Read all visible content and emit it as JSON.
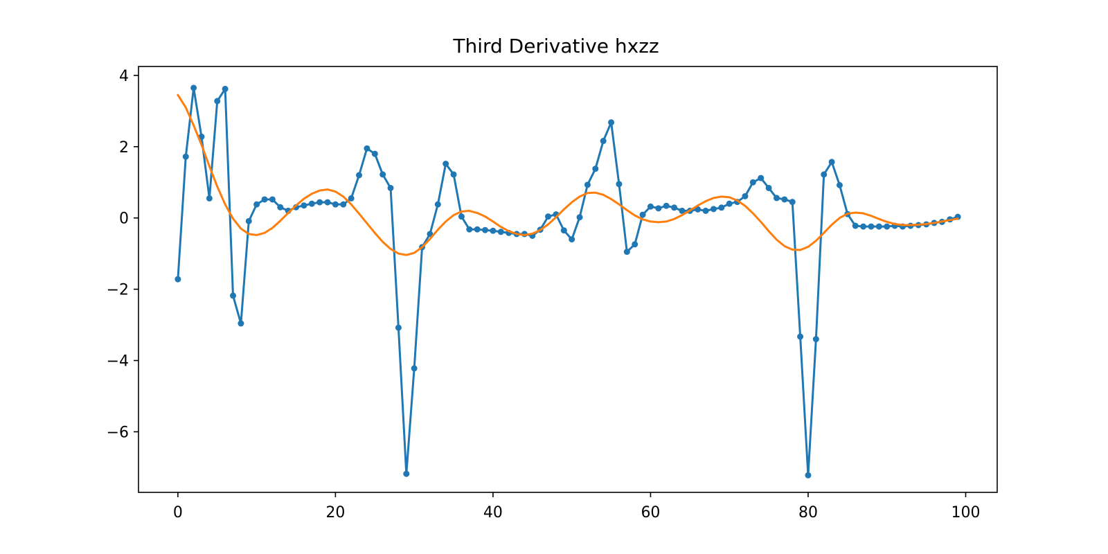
{
  "chart_data": {
    "type": "line",
    "title": "Third Derivative hxzz",
    "xlabel": "",
    "ylabel": "",
    "xlim": [
      -5,
      104
    ],
    "ylim": [
      -7.7,
      4.25
    ],
    "x_ticks": [
      0,
      20,
      40,
      60,
      80,
      100
    ],
    "x_tick_labels": [
      "0",
      "20",
      "40",
      "60",
      "80",
      "100"
    ],
    "y_ticks": [
      4,
      2,
      0,
      -2,
      -4,
      -6
    ],
    "y_tick_labels": [
      "4",
      "2",
      "0",
      "−2",
      "−4",
      "−6"
    ],
    "grid": false,
    "legend": "none",
    "series": [
      {
        "color": "#1f77b4",
        "style": "line-with-dot-markers",
        "x": [
          0,
          1,
          2,
          3,
          4,
          5,
          6,
          7,
          8,
          9,
          10,
          11,
          12,
          13,
          14,
          15,
          16,
          17,
          18,
          19,
          20,
          21,
          22,
          23,
          24,
          25,
          26,
          27,
          28,
          29,
          30,
          31,
          32,
          33,
          34,
          35,
          36,
          37,
          38,
          39,
          40,
          41,
          42,
          43,
          44,
          45,
          46,
          47,
          48,
          49,
          50,
          51,
          52,
          53,
          54,
          55,
          56,
          57,
          58,
          59,
          60,
          61,
          62,
          63,
          64,
          65,
          66,
          67,
          68,
          69,
          70,
          71,
          72,
          73,
          74,
          75,
          76,
          77,
          78,
          79,
          80,
          81,
          82,
          83,
          84,
          85,
          86,
          87,
          88,
          89,
          90,
          91,
          92,
          93,
          94,
          95,
          96,
          97,
          98,
          99
        ],
        "y": [
          -1.72,
          1.72,
          3.65,
          2.28,
          0.55,
          3.28,
          3.62,
          -2.18,
          -2.96,
          -0.09,
          0.38,
          0.52,
          0.52,
          0.3,
          0.2,
          0.3,
          0.35,
          0.4,
          0.44,
          0.44,
          0.38,
          0.38,
          0.55,
          1.2,
          1.95,
          1.8,
          1.22,
          0.84,
          -3.08,
          -7.18,
          -4.22,
          -0.82,
          -0.45,
          0.38,
          1.52,
          1.22,
          0.04,
          -0.32,
          -0.32,
          -0.34,
          -0.36,
          -0.39,
          -0.42,
          -0.45,
          -0.45,
          -0.5,
          -0.33,
          0.04,
          0.1,
          -0.35,
          -0.6,
          0.02,
          0.93,
          1.38,
          2.16,
          2.68,
          0.95,
          -0.95,
          -0.74,
          0.09,
          0.32,
          0.27,
          0.34,
          0.29,
          0.2,
          0.2,
          0.24,
          0.2,
          0.25,
          0.29,
          0.4,
          0.45,
          0.61,
          1.0,
          1.12,
          0.84,
          0.56,
          0.52,
          0.45,
          -3.33,
          -7.22,
          -3.4,
          1.22,
          1.57,
          0.92,
          0.11,
          -0.22,
          -0.24,
          -0.24,
          -0.24,
          -0.24,
          -0.22,
          -0.24,
          -0.22,
          -0.2,
          -0.18,
          -0.14,
          -0.11,
          -0.04,
          0.03
        ]
      },
      {
        "color": "#ff7f0e",
        "style": "line",
        "x": [
          0,
          1,
          2,
          3,
          4,
          5,
          6,
          7,
          8,
          9,
          10,
          11,
          12,
          13,
          14,
          15,
          16,
          17,
          18,
          19,
          20,
          21,
          22,
          23,
          24,
          25,
          26,
          27,
          28,
          29,
          30,
          31,
          32,
          33,
          34,
          35,
          36,
          37,
          38,
          39,
          40,
          41,
          42,
          43,
          44,
          45,
          46,
          47,
          48,
          49,
          50,
          51,
          52,
          53,
          54,
          55,
          56,
          57,
          58,
          59,
          60,
          61,
          62,
          63,
          64,
          65,
          66,
          67,
          68,
          69,
          70,
          71,
          72,
          73,
          74,
          75,
          76,
          77,
          78,
          79,
          80,
          81,
          82,
          83,
          84,
          85,
          86,
          87,
          88,
          89,
          90,
          91,
          92,
          93,
          94,
          95,
          96,
          97,
          98,
          99
        ],
        "y": [
          3.45,
          3.1,
          2.6,
          2.05,
          1.45,
          0.88,
          0.38,
          -0.02,
          -0.3,
          -0.45,
          -0.48,
          -0.42,
          -0.28,
          -0.08,
          0.14,
          0.35,
          0.54,
          0.68,
          0.77,
          0.8,
          0.74,
          0.6,
          0.38,
          0.12,
          -0.15,
          -0.42,
          -0.67,
          -0.87,
          -1.0,
          -1.04,
          -0.98,
          -0.82,
          -0.59,
          -0.33,
          -0.1,
          0.08,
          0.18,
          0.2,
          0.14,
          0.04,
          -0.1,
          -0.25,
          -0.37,
          -0.45,
          -0.48,
          -0.44,
          -0.34,
          -0.18,
          0.02,
          0.24,
          0.44,
          0.6,
          0.7,
          0.71,
          0.65,
          0.53,
          0.38,
          0.22,
          0.07,
          -0.04,
          -0.1,
          -0.12,
          -0.1,
          -0.03,
          0.08,
          0.21,
          0.35,
          0.47,
          0.56,
          0.6,
          0.58,
          0.49,
          0.34,
          0.13,
          -0.11,
          -0.37,
          -0.61,
          -0.79,
          -0.89,
          -0.9,
          -0.81,
          -0.64,
          -0.42,
          -0.19,
          0.0,
          0.12,
          0.15,
          0.13,
          0.06,
          -0.03,
          -0.11,
          -0.17,
          -0.2,
          -0.2,
          -0.19,
          -0.17,
          -0.14,
          -0.1,
          -0.06,
          -0.02
        ]
      }
    ]
  }
}
